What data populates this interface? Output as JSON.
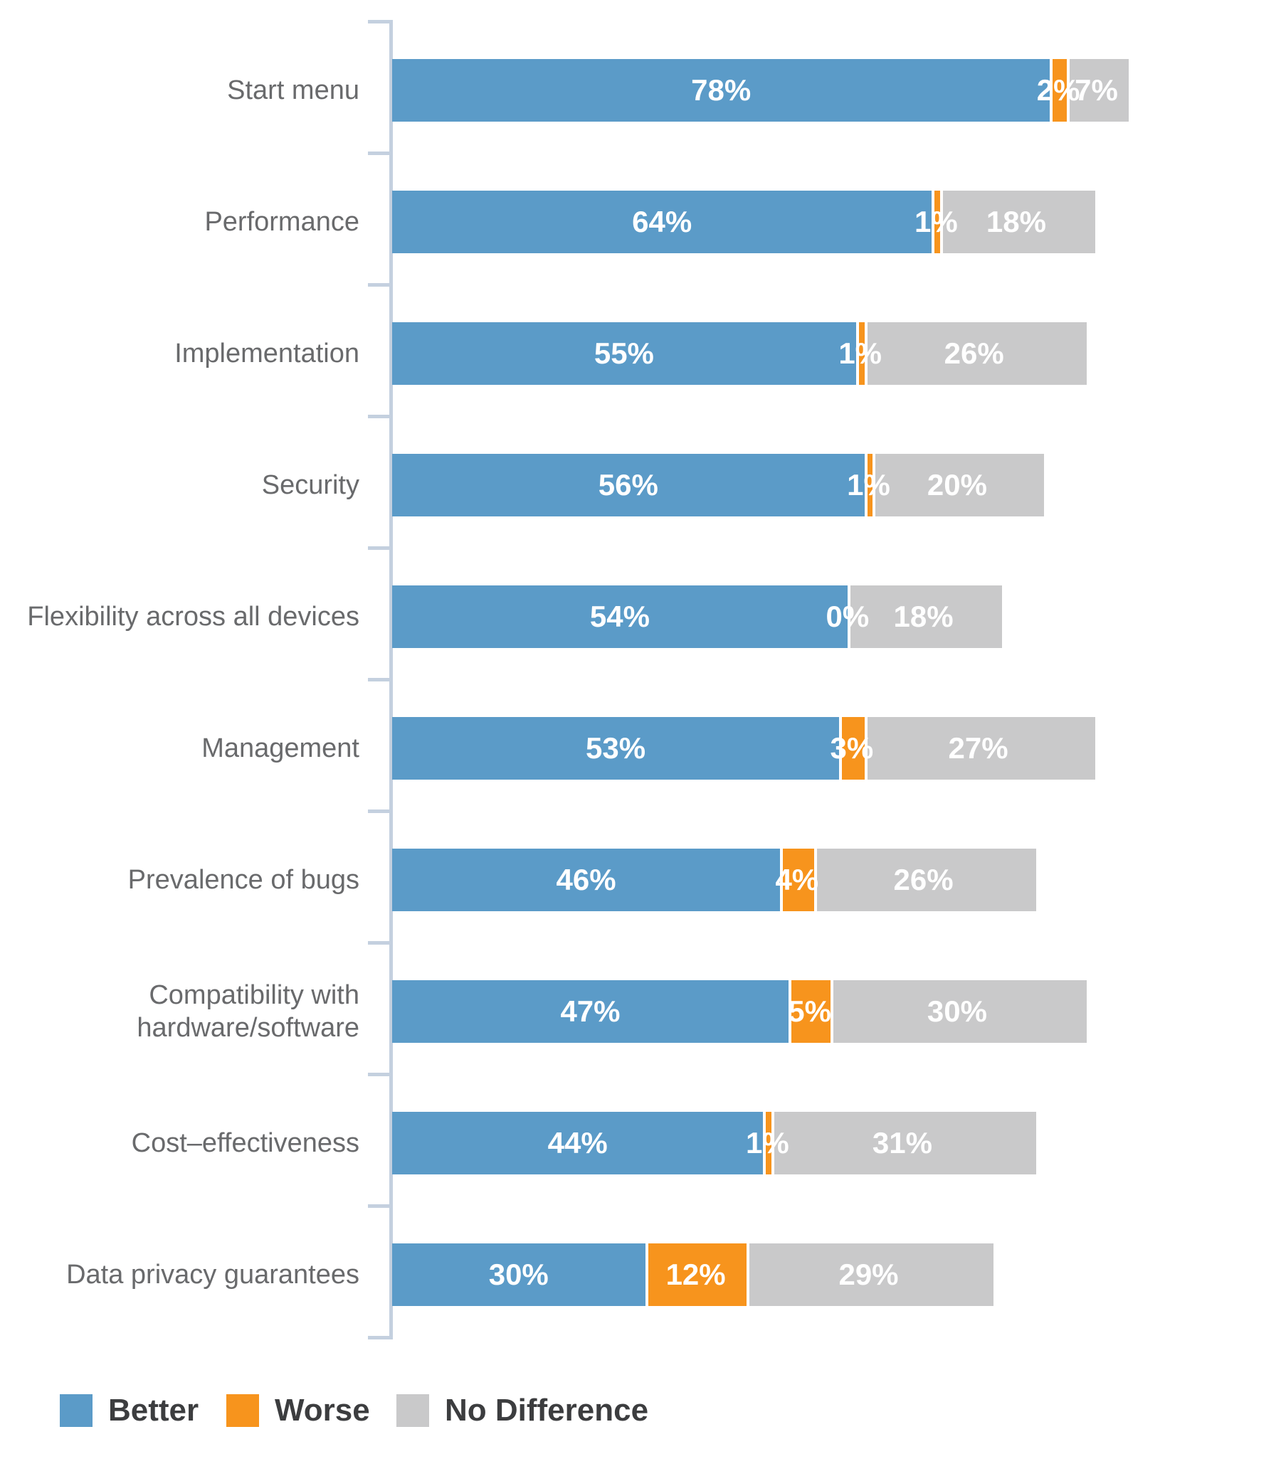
{
  "chart_data": {
    "type": "bar",
    "orientation": "horizontal-stacked",
    "title": "",
    "xlabel": "",
    "ylabel": "",
    "xlim": [
      0,
      100
    ],
    "grid": false,
    "legend_position": "bottom",
    "value_suffix": "%",
    "categories": [
      "Start menu",
      "Performance",
      "Implementation",
      "Security",
      "Flexibility across all devices",
      "Management",
      "Prevalence of bugs",
      "Compatibility with hardware/software",
      "Cost–effectiveness",
      "Data privacy guarantees"
    ],
    "series": [
      {
        "name": "Better",
        "color": "#5b9bc8",
        "values": [
          78,
          64,
          55,
          56,
          54,
          53,
          46,
          47,
          44,
          30
        ]
      },
      {
        "name": "Worse",
        "color": "#f7941d",
        "values": [
          2,
          1,
          1,
          1,
          0,
          3,
          4,
          5,
          1,
          12
        ]
      },
      {
        "name": "No Difference",
        "color": "#c9c9ca",
        "values": [
          7,
          18,
          26,
          20,
          18,
          27,
          26,
          30,
          31,
          29
        ]
      }
    ],
    "value_labels_shown": true,
    "value_label_color": "#ffffff",
    "category_label_color": "#696a6c",
    "axis_color": "#c4d0df",
    "legend_text_color": "#3c3d3f"
  }
}
